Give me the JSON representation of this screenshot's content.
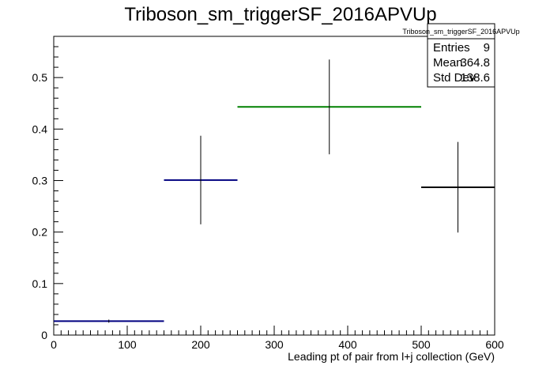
{
  "chart_data": {
    "type": "histogram-errorbars",
    "title": "Triboson_sm_triggerSF_2016APVUp",
    "xlabel": "Leading pt of pair from l+j collection (GeV)",
    "ylabel": "",
    "xlim": [
      0,
      600
    ],
    "ylim": [
      0,
      0.58
    ],
    "x_ticks": [
      0,
      100,
      200,
      300,
      400,
      500,
      600
    ],
    "x_tick_labels": [
      "0",
      "100",
      "200",
      "300",
      "400",
      "500",
      "600"
    ],
    "y_ticks": [
      0,
      0.1,
      0.2,
      0.3,
      0.4,
      0.5
    ],
    "y_tick_labels": [
      "0",
      "0.1",
      "0.2",
      "0.3",
      "0.4",
      "0.5"
    ],
    "grid": false,
    "legend_placement": "top-right",
    "bins": [
      {
        "x_low": 0,
        "x_high": 150,
        "x_center": 75,
        "y": 0.027,
        "y_err": 0.003,
        "color": "#000080"
      },
      {
        "x_low": 150,
        "x_high": 250,
        "x_center": 200,
        "y": 0.301,
        "y_err": 0.086,
        "color": "#000080"
      },
      {
        "x_low": 250,
        "x_high": 500,
        "x_center": 375,
        "y": 0.443,
        "y_err": 0.092,
        "color": "#008000"
      },
      {
        "x_low": 500,
        "x_high": 600,
        "x_center": 550,
        "y": 0.287,
        "y_err": 0.088,
        "color": "#000000"
      }
    ],
    "stats_box": {
      "name": "Triboson_sm_triggerSF_2016APVUp",
      "entries_label": "Entries",
      "entries_value": "9",
      "mean_label": "Mean",
      "mean_value": "364.8",
      "stddev_label": "Std Dev",
      "stddev_value": "138.6"
    }
  }
}
